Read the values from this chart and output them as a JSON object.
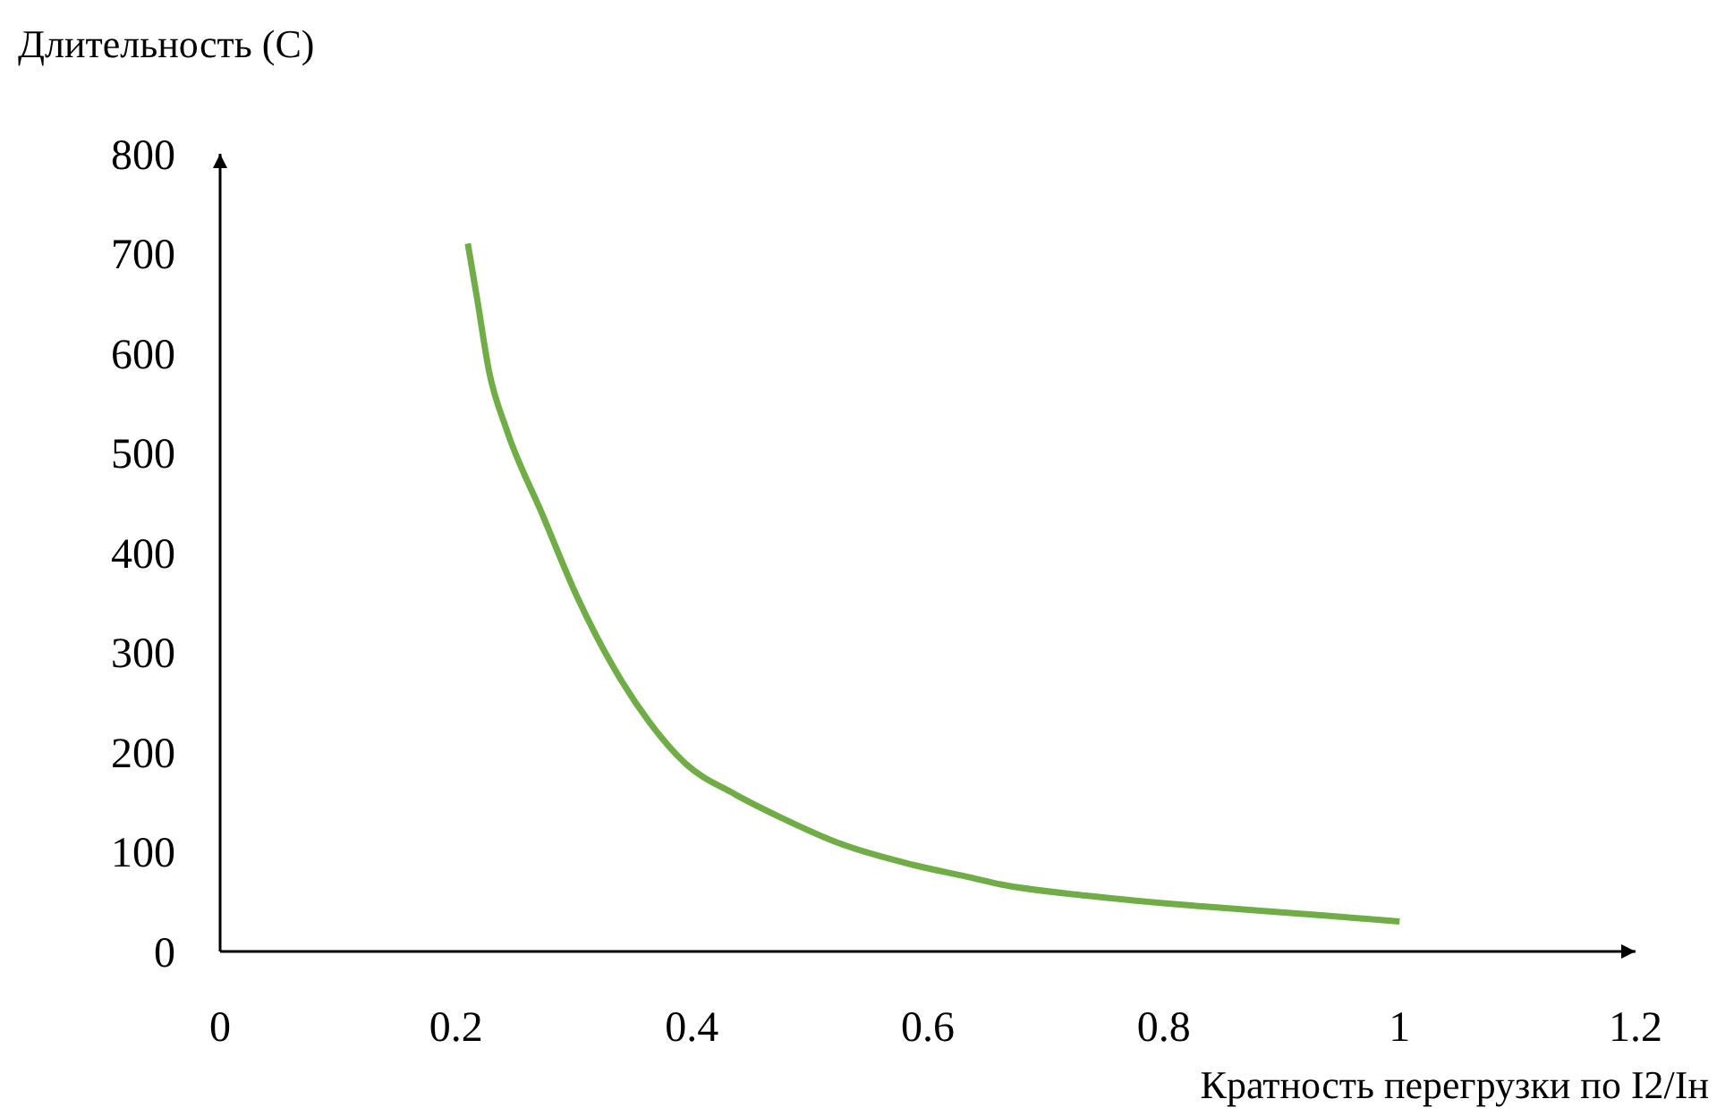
{
  "chart_data": {
    "type": "line",
    "xlabel": "Кратность перегрузки по I2/Iн",
    "ylabel": "Длительность (С)",
    "series": [
      {
        "color": "#70ad47",
        "x": [
          0.21,
          0.218,
          0.228,
          0.243,
          0.273,
          0.303,
          0.334,
          0.364,
          0.395,
          0.436,
          0.476,
          0.526,
          0.587,
          0.633,
          0.663,
          0.734,
          0.835,
          0.936,
          1.0
        ],
        "values": [
          710,
          654,
          582,
          523,
          439,
          355,
          284,
          230,
          188,
          158,
          134,
          108,
          87,
          75,
          67,
          56,
          45,
          36,
          30
        ]
      }
    ],
    "xlim": [
      0,
      1.2
    ],
    "xticks": [
      0,
      0.2,
      0.4,
      0.6,
      0.8,
      1,
      1.2
    ],
    "ylim": [
      0,
      800
    ],
    "yticks": [
      0,
      100,
      200,
      300,
      400,
      500,
      600,
      700,
      800
    ],
    "grid": false,
    "marker": "none",
    "line_style": "solid"
  }
}
